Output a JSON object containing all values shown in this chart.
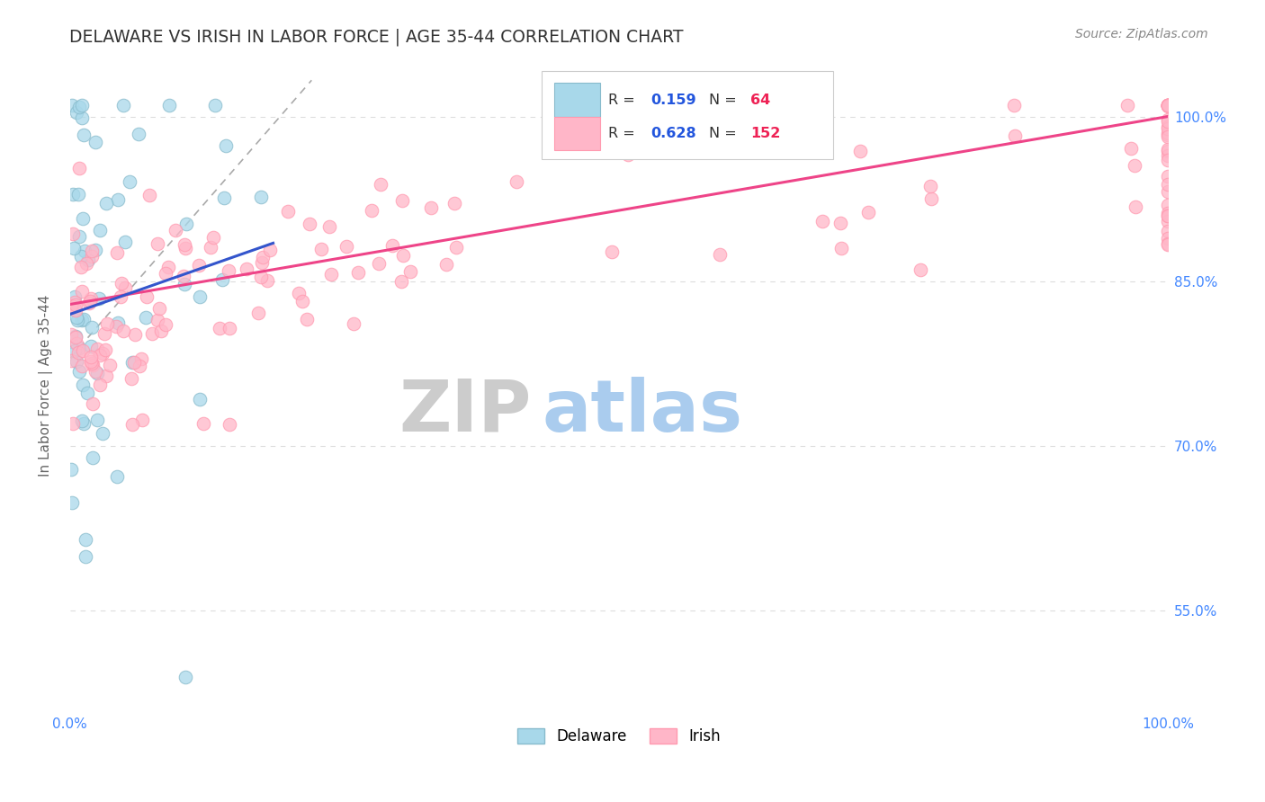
{
  "title": "DELAWARE VS IRISH IN LABOR FORCE | AGE 35-44 CORRELATION CHART",
  "source_text": "Source: ZipAtlas.com",
  "ylabel": "In Labor Force | Age 35-44",
  "ytick_values": [
    0.55,
    0.7,
    0.85,
    1.0
  ],
  "ytick_labels": [
    "55.0%",
    "70.0%",
    "85.0%",
    "100.0%"
  ],
  "xlim": [
    0.0,
    1.0
  ],
  "ylim": [
    0.46,
    1.05
  ],
  "legend_r_delaware": "0.159",
  "legend_n_delaware": "64",
  "legend_r_irish": "0.628",
  "legend_n_irish": "152",
  "delaware_color": "#A8D8EA",
  "irish_color": "#FFB6C8",
  "delaware_edge": "#88BBCC",
  "irish_edge": "#FF9AB0",
  "trend_delaware_color": "#3355CC",
  "trend_irish_color": "#EE4488",
  "ref_line_color": "#AAAAAA",
  "watermark_zip_color": "#CCCCCC",
  "watermark_atlas_color": "#AACCEE",
  "title_color": "#333333",
  "source_color": "#888888",
  "axis_label_color": "#666666",
  "tick_color": "#4488FF",
  "grid_color": "#DDDDDD",
  "legend_text_color": "#333333",
  "legend_r_color": "#2255DD",
  "legend_n_color": "#EE2255",
  "bottom_legend_delaware": "Delaware",
  "bottom_legend_irish": "Irish"
}
